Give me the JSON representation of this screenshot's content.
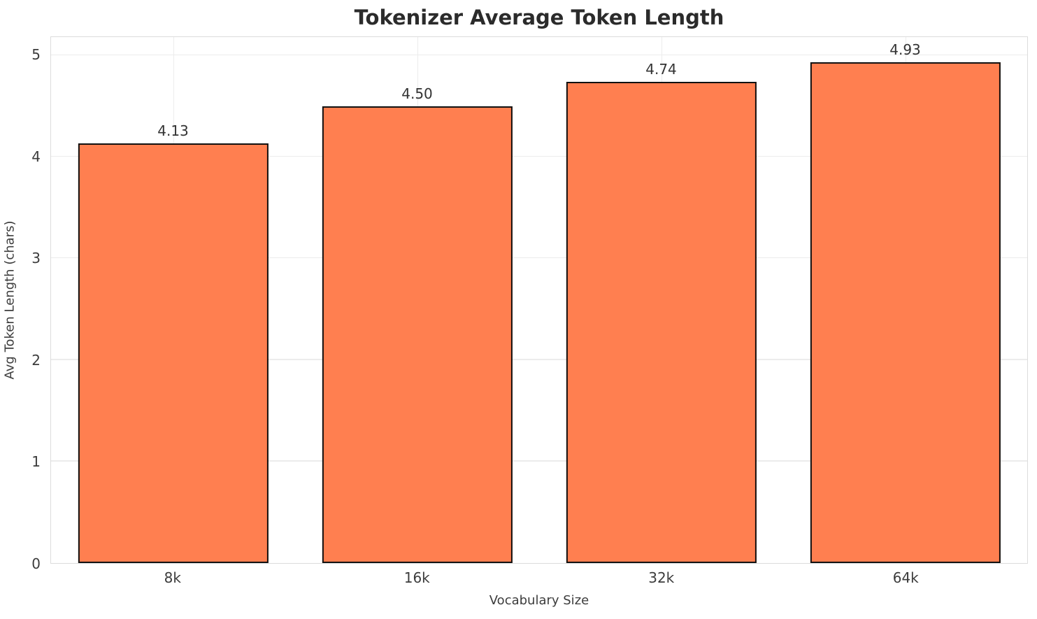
{
  "figure": {
    "title": "Tokenizer Average Token Length"
  },
  "chart_data": {
    "type": "bar",
    "title": "Tokenizer Average Token Length",
    "xlabel": "Vocabulary Size",
    "ylabel": "Avg Token Length (chars)",
    "categories": [
      "8k",
      "16k",
      "32k",
      "64k"
    ],
    "values": [
      4.13,
      4.5,
      4.74,
      4.93
    ],
    "value_labels": [
      "4.13",
      "4.50",
      "4.74",
      "4.93"
    ],
    "yticks": [
      0,
      1,
      2,
      3,
      4,
      5
    ],
    "ylim": [
      0,
      5.18
    ],
    "grid": true,
    "legend": false,
    "bar_color": "#FF7F50",
    "bar_edge_color": "#111111",
    "grid_color": "#ececec",
    "bar_width_fraction": 0.78
  }
}
